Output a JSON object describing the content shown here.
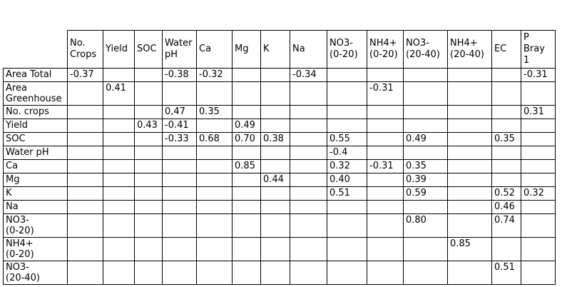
{
  "table": {
    "corner": "",
    "text_color": "#000000",
    "border_color": "#000000",
    "background_color": "#ffffff",
    "columns": [
      "No.\nCrops",
      "Yield",
      "SOC",
      "Water\npH",
      "Ca",
      "Mg",
      "K",
      "Na",
      "NO3-\n(0-20)",
      "NH4+\n(0-20)",
      "NO3-\n(20-40)",
      "NH4+\n(20-40)",
      "EC",
      "P\nBray\n1"
    ],
    "rows": [
      {
        "label": "Area Total",
        "values": [
          "-0.37",
          "",
          "",
          "-0.38",
          "-0.32",
          "",
          "",
          "-0.34",
          "",
          "",
          "",
          "",
          "",
          "-0.31"
        ]
      },
      {
        "label": "Area\nGreenhouse",
        "values": [
          "",
          "0.41",
          "",
          "",
          "",
          "",
          "",
          "",
          "",
          "-0.31",
          "",
          "",
          "",
          ""
        ]
      },
      {
        "label": "No. crops",
        "values": [
          "",
          "",
          "",
          "0,47",
          "0.35",
          "",
          "",
          "",
          "",
          "",
          "",
          "",
          "",
          "0.31"
        ]
      },
      {
        "label": "Yield",
        "values": [
          "",
          "",
          "0.43",
          "-0.41",
          "",
          "0.49",
          "",
          "",
          "",
          "",
          "",
          "",
          "",
          ""
        ]
      },
      {
        "label": "SOC",
        "values": [
          "",
          "",
          "",
          "-0.33",
          "0.68",
          "0.70",
          "0.38",
          "",
          "0.55",
          "",
          "0.49",
          "",
          "0.35",
          ""
        ]
      },
      {
        "label": "Water pH",
        "values": [
          "",
          "",
          "",
          "",
          "",
          "",
          "",
          "",
          "-0.4",
          "",
          "",
          "",
          "",
          ""
        ]
      },
      {
        "label": "Ca",
        "values": [
          "",
          "",
          "",
          "",
          "",
          "0.85",
          "",
          "",
          "0.32",
          "-0.31",
          "0.35",
          "",
          "",
          ""
        ]
      },
      {
        "label": "Mg",
        "values": [
          "",
          "",
          "",
          "",
          "",
          "",
          "0.44",
          "",
          "0.40",
          "",
          "0.39",
          "",
          "",
          ""
        ]
      },
      {
        "label": "K",
        "values": [
          "",
          "",
          "",
          "",
          "",
          "",
          "",
          "",
          "0.51",
          "",
          "0.59",
          "",
          "0.52",
          "0.32"
        ]
      },
      {
        "label": "Na",
        "values": [
          "",
          "",
          "",
          "",
          "",
          "",
          "",
          "",
          "",
          "",
          "",
          "",
          "0.46",
          ""
        ]
      },
      {
        "label": "NO3-\n(0-20)",
        "values": [
          "",
          "",
          "",
          "",
          "",
          "",
          "",
          "",
          "",
          "",
          "0.80",
          "",
          "0.74",
          ""
        ]
      },
      {
        "label": "NH4+\n(0-20)",
        "values": [
          "",
          "",
          "",
          "",
          "",
          "",
          "",
          "",
          "",
          "",
          "",
          "0.85",
          "",
          ""
        ]
      },
      {
        "label": "NO3-\n(20-40)",
        "values": [
          "",
          "",
          "",
          "",
          "",
          "",
          "",
          "",
          "",
          "",
          "",
          "",
          "0.51",
          ""
        ]
      }
    ]
  }
}
